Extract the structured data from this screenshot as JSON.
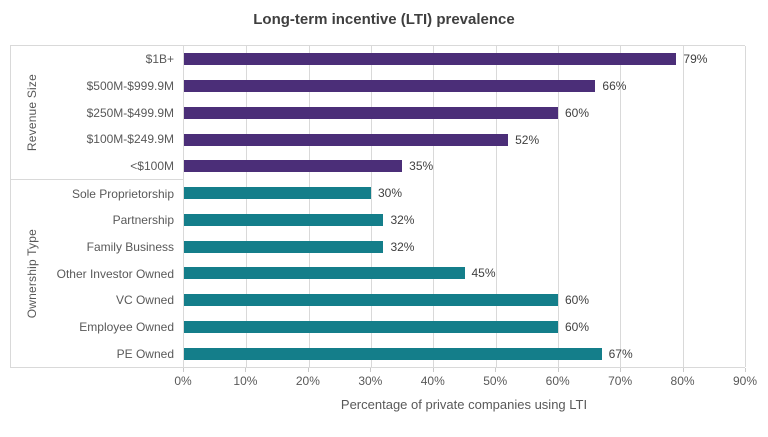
{
  "chart_data": {
    "type": "bar",
    "orientation": "horizontal",
    "title": "Long-term incentive (LTI) prevalence",
    "xlabel": "Percentage of private companies using LTI",
    "xlim": [
      0,
      90
    ],
    "x_ticks": [
      "0%",
      "10%",
      "20%",
      "30%",
      "40%",
      "50%",
      "60%",
      "70%",
      "80%",
      "90%"
    ],
    "grid": true,
    "grid_color": "#d9d9d9",
    "value_suffix": "%",
    "groups": [
      {
        "name": "Revenue Size",
        "color": "#4b2e78",
        "items": [
          {
            "label": "$1B+",
            "value": 79
          },
          {
            "label": "$500M-$999.9M",
            "value": 66
          },
          {
            "label": "$250M-$499.9M",
            "value": 60
          },
          {
            "label": "$100M-$249.9M",
            "value": 52
          },
          {
            "label": "<$100M",
            "value": 35
          }
        ]
      },
      {
        "name": "Ownership Type",
        "color": "#147e8a",
        "items": [
          {
            "label": "Sole Proprietorship",
            "value": 30
          },
          {
            "label": "Partnership",
            "value": 32
          },
          {
            "label": "Family Business",
            "value": 32
          },
          {
            "label": "Other Investor Owned",
            "value": 45
          },
          {
            "label": "VC Owned",
            "value": 60
          },
          {
            "label": "Employee Owned",
            "value": 60
          },
          {
            "label": "PE Owned",
            "value": 67
          }
        ]
      }
    ]
  }
}
